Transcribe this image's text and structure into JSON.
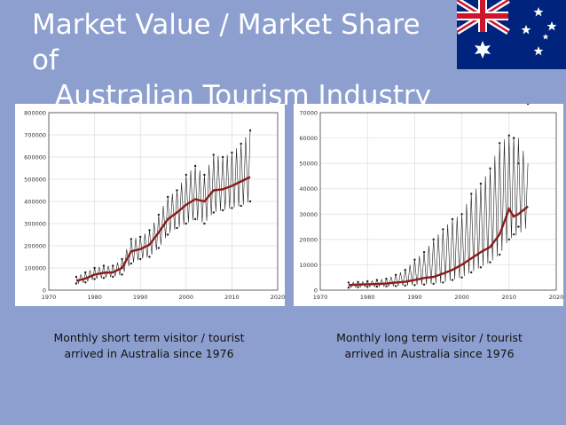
{
  "slide": {
    "title_line1": "Market Value / Market Share of",
    "title_line2": "Australian Tourism Industry",
    "caption_left": "Monthly short term visitor / tourist arrived in Australia since 1976",
    "caption_right": "Monthly long term visitor / tourist arrived in Australia since 1976"
  },
  "colors": {
    "background": "#8d9fcf",
    "trend": "#8b1a1a",
    "raw": "#222222",
    "grid": "#dddddd",
    "flag_blue": "#00247d",
    "flag_red": "#cf142b"
  },
  "chart_data": [
    {
      "type": "line",
      "title": "",
      "xlabel": "",
      "ylabel": "",
      "xlim": [
        1970,
        2020
      ],
      "ylim": [
        0,
        800000
      ],
      "xticks": [
        1970,
        1980,
        1990,
        2000,
        2010,
        2020
      ],
      "yticks": [
        0,
        100000,
        200000,
        300000,
        400000,
        500000,
        600000,
        700000,
        800000
      ],
      "grid": true,
      "series": [
        {
          "role": "trend",
          "x": [
            1976,
            1978,
            1980,
            1982,
            1984,
            1986,
            1988,
            1990,
            1992,
            1994,
            1996,
            1998,
            2000,
            2002,
            2004,
            2006,
            2008,
            2010,
            2012,
            2014
          ],
          "values": [
            42000,
            52000,
            70000,
            78000,
            80000,
            100000,
            175000,
            185000,
            205000,
            260000,
            320000,
            350000,
            385000,
            410000,
            400000,
            450000,
            455000,
            470000,
            490000,
            510000
          ]
        },
        {
          "role": "raw-high",
          "x": [
            1976,
            1978,
            1980,
            1982,
            1984,
            1986,
            1988,
            1990,
            1992,
            1994,
            1996,
            1998,
            2000,
            2002,
            2004,
            2006,
            2008,
            2010,
            2012,
            2014
          ],
          "values": [
            60000,
            80000,
            100000,
            110000,
            110000,
            140000,
            230000,
            240000,
            270000,
            340000,
            420000,
            450000,
            520000,
            560000,
            520000,
            610000,
            600000,
            620000,
            660000,
            720000
          ]
        },
        {
          "role": "raw-low",
          "x": [
            1976,
            1978,
            1980,
            1982,
            1984,
            1986,
            1988,
            1990,
            1992,
            1994,
            1996,
            1998,
            2000,
            2002,
            2004,
            2006,
            2008,
            2010,
            2012,
            2014
          ],
          "values": [
            30000,
            35000,
            50000,
            55000,
            60000,
            70000,
            120000,
            140000,
            150000,
            190000,
            250000,
            280000,
            300000,
            320000,
            300000,
            350000,
            360000,
            370000,
            380000,
            400000
          ]
        }
      ]
    },
    {
      "type": "line",
      "title": "",
      "xlabel": "",
      "ylabel": "",
      "xlim": [
        1970,
        2020
      ],
      "ylim": [
        0,
        70000
      ],
      "xticks": [
        1970,
        1980,
        1990,
        2000,
        2010,
        2020
      ],
      "yticks": [
        0,
        10000,
        20000,
        30000,
        40000,
        50000,
        60000,
        70000
      ],
      "grid": true,
      "series": [
        {
          "role": "trend",
          "x": [
            1976,
            1978,
            1980,
            1982,
            1984,
            1986,
            1988,
            1990,
            1992,
            1994,
            1996,
            1998,
            2000,
            2002,
            2004,
            2006,
            2008,
            2010,
            2011,
            2012,
            2014
          ],
          "values": [
            2000,
            2200,
            2300,
            2400,
            2600,
            3000,
            3300,
            4000,
            4800,
            5200,
            6500,
            8000,
            10000,
            12500,
            15000,
            17000,
            22000,
            32000,
            29000,
            30000,
            33000
          ]
        },
        {
          "role": "raw-high",
          "x": [
            1976,
            1978,
            1980,
            1982,
            1984,
            1986,
            1988,
            1990,
            1992,
            1994,
            1996,
            1998,
            2000,
            2002,
            2004,
            2006,
            2008,
            2010,
            2012,
            2014
          ],
          "values": [
            3000,
            3200,
            3500,
            4000,
            4500,
            6000,
            8000,
            12000,
            15000,
            20000,
            24000,
            28000,
            30000,
            38000,
            42000,
            48000,
            58000,
            61000,
            60000,
            50000
          ]
        },
        {
          "role": "raw-low",
          "x": [
            1976,
            1978,
            1980,
            1982,
            1984,
            1986,
            1988,
            1990,
            1992,
            1994,
            1996,
            1998,
            2000,
            2002,
            2004,
            2006,
            2008,
            2010,
            2012,
            2014
          ],
          "values": [
            1000,
            1200,
            1300,
            1400,
            1500,
            1600,
            1800,
            2000,
            2200,
            2500,
            3000,
            4000,
            5000,
            7000,
            9000,
            11000,
            14000,
            20000,
            22000,
            25000
          ]
        }
      ]
    }
  ]
}
